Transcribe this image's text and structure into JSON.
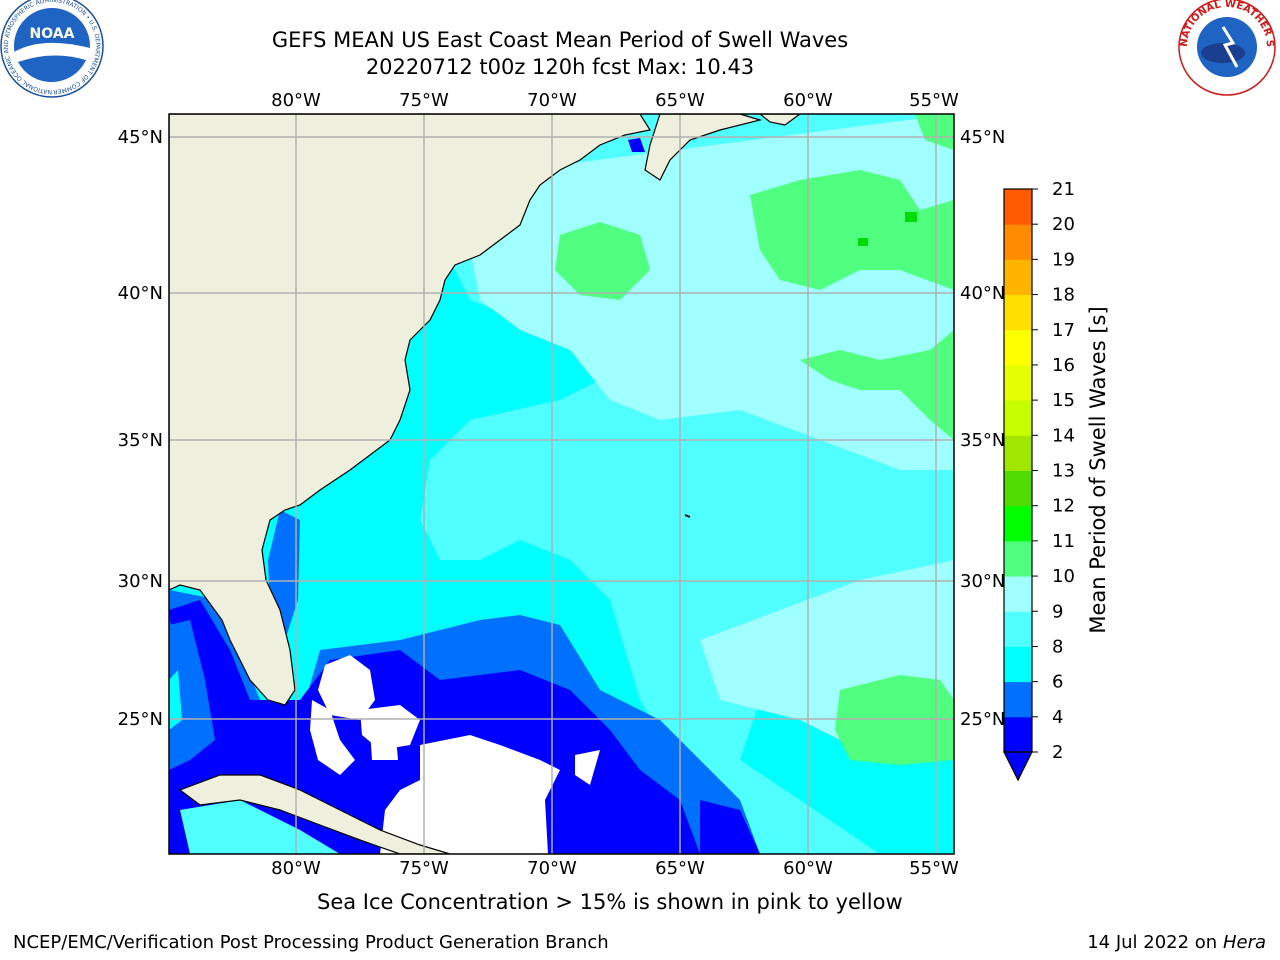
{
  "header": {
    "title_line1": "GEFS MEAN US East Coast Mean Period of Swell Waves",
    "title_line2": "20220712 t00z 120h fcst   Max: 10.43"
  },
  "logos": {
    "left": {
      "name": "NOAA",
      "ring_text": "NATIONAL OCEANIC AND ATMOSPHERIC ADMINISTRATION • U.S. DEPARTMENT OF COMMERCE"
    },
    "right": {
      "ring_text": "NATIONAL WEATHER SERVICE"
    }
  },
  "map": {
    "lon_labels": [
      "80°W",
      "75°W",
      "70°W",
      "65°W",
      "60°W",
      "55°W"
    ],
    "lat_labels": [
      "45°N",
      "40°N",
      "35°N",
      "30°N",
      "25°N"
    ],
    "colors": {
      "land": "#efefde",
      "grid": "#b0b0b0",
      "coast": "#000000",
      "white_region": "#ffffff"
    }
  },
  "colorbar": {
    "label": "Mean Period of Swell Waves [s]",
    "ticks": [
      "2",
      "4",
      "6",
      "8",
      "9",
      "10",
      "11",
      "12",
      "13",
      "14",
      "15",
      "16",
      "17",
      "18",
      "19",
      "20",
      "21"
    ],
    "colors": [
      "#0000ff",
      "#0070ff",
      "#00ffff",
      "#50ffff",
      "#a0ffff",
      "#50ff80",
      "#00ff00",
      "#50dc00",
      "#a0e600",
      "#c8ff00",
      "#e6ff00",
      "#ffff00",
      "#ffe000",
      "#ffb400",
      "#ff8c00",
      "#ff5a00",
      "#ff2800",
      "#ff0000"
    ],
    "extend_color": "#0000ff"
  },
  "caption": "Sea Ice Concentration > 15% is shown in pink to yellow",
  "footer": {
    "left": "NCEP/EMC/Verification Post Processing Product Generation Branch",
    "right_date": "14 Jul 2022 on ",
    "right_host": "Hera"
  }
}
